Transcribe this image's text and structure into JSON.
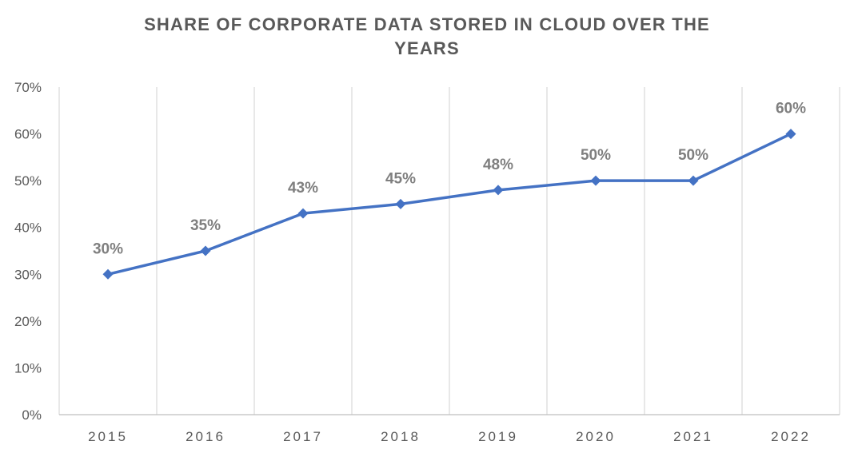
{
  "chart_data": {
    "type": "line",
    "title_lines": [
      "SHARE OF CORPORATE DATA STORED IN CLOUD OVER THE",
      "YEARS"
    ],
    "categories": [
      "2015",
      "2016",
      "2017",
      "2018",
      "2019",
      "2020",
      "2021",
      "2022"
    ],
    "series": [
      {
        "values": [
          30,
          35,
          43,
          45,
          48,
          50,
          50,
          60
        ],
        "color": "#4472c4",
        "marker": "diamond"
      }
    ],
    "data_labels": [
      "30%",
      "35%",
      "43%",
      "45%",
      "48%",
      "50%",
      "50%",
      "60%"
    ],
    "y_ticks": [
      0,
      10,
      20,
      30,
      40,
      50,
      60,
      70
    ],
    "y_tick_labels": [
      "0%",
      "10%",
      "20%",
      "30%",
      "40%",
      "50%",
      "60%",
      "70%"
    ],
    "ylim": [
      0,
      70
    ],
    "xlabel": "",
    "ylabel": "",
    "grid": "vertical",
    "legend": "none",
    "gridline_color": "#d9d9d9",
    "axis_color": "#bfbfbf",
    "data_label_color": "#7f7f7f",
    "text_color": "#595959"
  }
}
